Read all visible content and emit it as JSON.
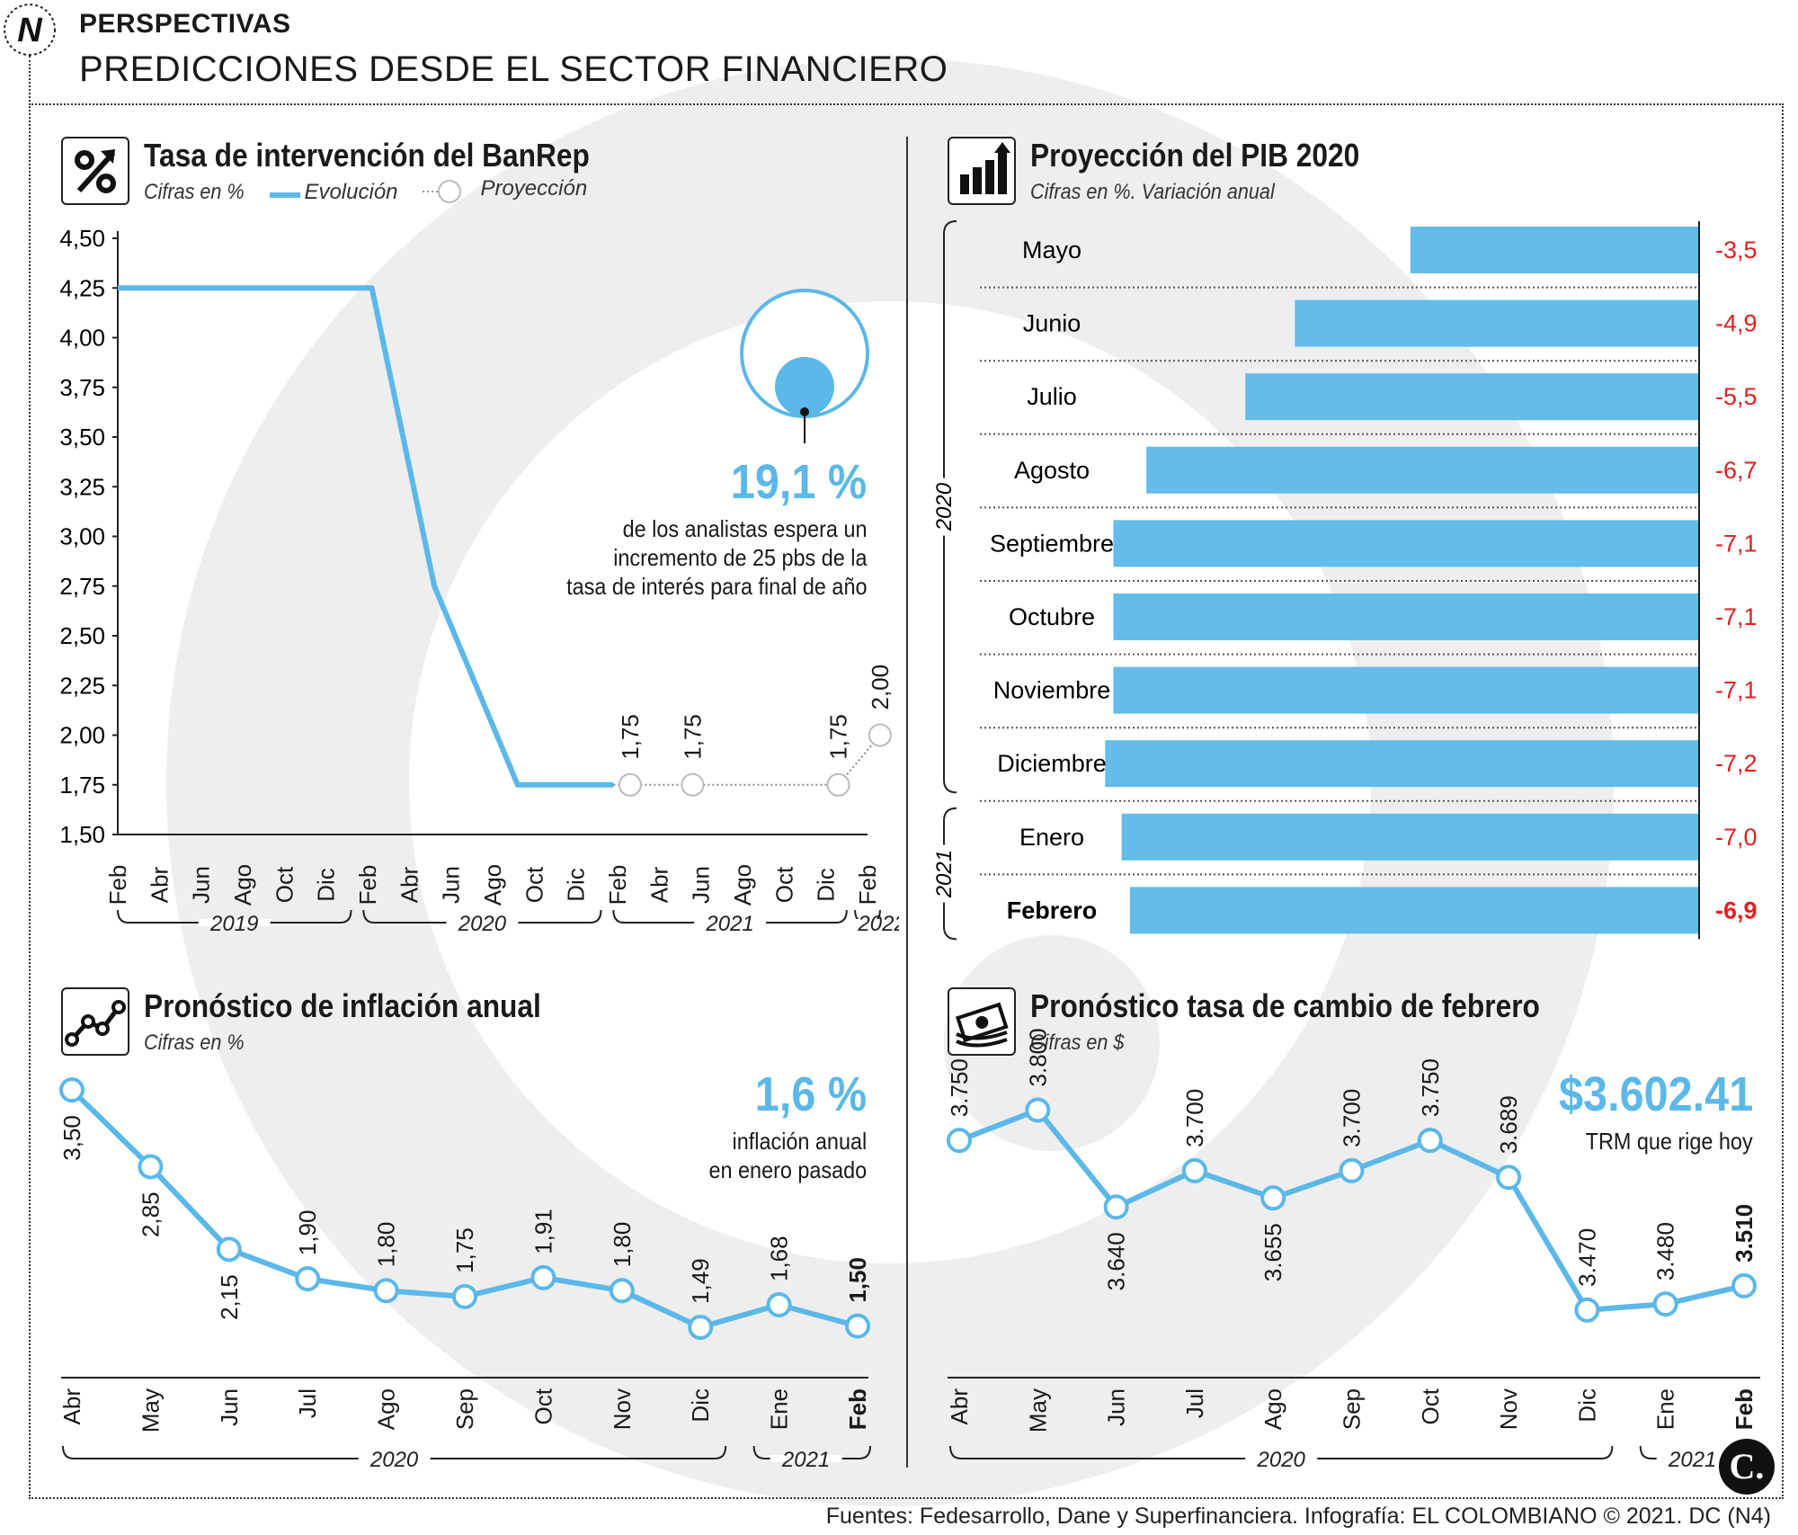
{
  "header": {
    "logo_letter": "N",
    "tag": "PERSPECTIVAS",
    "title": "PREDICCIONES DESDE EL SECTOR FINANCIERO"
  },
  "colors": {
    "accent": "#5bb8e8",
    "negative": "#e02020",
    "text": "#1a1a1a",
    "watermark": "#eeeeee"
  },
  "panel_rate": {
    "icon": "percent-arrow-icon",
    "title": "Tasa de intervención del BanRep",
    "subtitle": "Cifras en %",
    "legend_evolution": "Evolución",
    "legend_projection": "Proyección",
    "callout_value": "19,1 %",
    "callout_lines": [
      "de los analistas espera un",
      "incremento de 25 pbs de la",
      "tasa de interés para final de año"
    ]
  },
  "panel_gdp": {
    "icon": "bar-chart-icon",
    "title": "Proyección del PIB 2020",
    "subtitle": "Cifras en %. Variación anual"
  },
  "panel_inflation": {
    "icon": "line-chart-icon",
    "title": "Pronóstico de inflación anual",
    "subtitle": "Cifras en %",
    "callout_value": "1,6 %",
    "callout_lines": [
      "inflación anual",
      "en enero pasado"
    ]
  },
  "panel_fx": {
    "icon": "money-icon",
    "title": "Pronóstico tasa de cambio de febrero",
    "subtitle": "Cifras en $",
    "callout_value": "$3.602.41",
    "callout_lines": [
      "TRM que rige hoy"
    ]
  },
  "footer": "Fuentes: Fedesarrollo, Dane y Superfinanciera. Infografía: EL COLOMBIANO © 2021. DC (N4)",
  "brand_mark": "C.",
  "chart_data": [
    {
      "type": "line",
      "title": "Tasa de intervención del BanRep",
      "ylabel": "Cifras en %",
      "ylim": [
        1.5,
        4.5
      ],
      "yticks": [
        "4,50",
        "4,25",
        "4,00",
        "3,75",
        "3,50",
        "3,25",
        "3,00",
        "2,75",
        "2,50",
        "2,25",
        "2,00",
        "1,75",
        "1,50"
      ],
      "x_ticks": [
        "Feb",
        "Abr",
        "Jun",
        "Ago",
        "Oct",
        "Dic",
        "Feb",
        "Abr",
        "Jun",
        "Ago",
        "Oct",
        "Dic",
        "Feb",
        "Abr",
        "Jun",
        "Ago",
        "Oct",
        "Dic",
        "Feb"
      ],
      "year_groups": [
        "2019",
        "2020",
        "2021",
        "2022"
      ],
      "series": [
        {
          "name": "Evolución",
          "x": [
            0,
            6.1,
            7.6,
            9.6,
            11.9
          ],
          "values": [
            4.25,
            4.25,
            2.75,
            1.75,
            1.75
          ]
        },
        {
          "name": "Proyección",
          "x": [
            12.3,
            13.8,
            17.3,
            18.3
          ],
          "values": [
            1.75,
            1.75,
            1.75,
            2.0
          ],
          "labels": [
            "1,75",
            "1,75",
            "1,75",
            "2,00"
          ]
        }
      ]
    },
    {
      "type": "bar",
      "title": "Proyección del PIB 2020",
      "categories": [
        "Mayo",
        "Junio",
        "Julio",
        "Agosto",
        "Septiembre",
        "Octubre",
        "Noviembre",
        "Diciembre",
        "Enero",
        "Febrero"
      ],
      "values": [
        -3.5,
        -4.9,
        -5.5,
        -6.7,
        -7.1,
        -7.1,
        -7.1,
        -7.2,
        -7.0,
        -6.9
      ],
      "labels": [
        "-3,5",
        "-4,9",
        "-5,5",
        "-6,7",
        "-7,1",
        "-7,1",
        "-7,1",
        "-7,2",
        "-7,0",
        "-6,9"
      ],
      "year_groups": [
        "2020",
        "2021"
      ],
      "xlim": [
        -8.5,
        0
      ]
    },
    {
      "type": "line",
      "title": "Pronóstico de inflación anual",
      "categories": [
        "Abr",
        "May",
        "Jun",
        "Jul",
        "Ago",
        "Sep",
        "Oct",
        "Nov",
        "Dic",
        "Ene",
        "Feb"
      ],
      "values": [
        3.5,
        2.85,
        2.15,
        1.9,
        1.8,
        1.75,
        1.91,
        1.8,
        1.49,
        1.68,
        1.5
      ],
      "labels": [
        "3,50",
        "2,85",
        "2,15",
        "1,90",
        "1,80",
        "1,75",
        "1,91",
        "1,80",
        "1,49",
        "1,68",
        "1,50"
      ],
      "year_groups": [
        "2020",
        "2021"
      ],
      "ylim": [
        1.2,
        3.6
      ]
    },
    {
      "type": "line",
      "title": "Pronóstico tasa de cambio de febrero",
      "categories": [
        "Abr",
        "May",
        "Jun",
        "Jul",
        "Ago",
        "Sep",
        "Oct",
        "Nov",
        "Dic",
        "Ene",
        "Feb"
      ],
      "values": [
        3750,
        3800,
        3640,
        3700,
        3655,
        3700,
        3750,
        3689,
        3470,
        3480,
        3510
      ],
      "labels": [
        "3.750",
        "3.800",
        "3.640",
        "3.700",
        "3.655",
        "3.700",
        "3.750",
        "3.689",
        "3.470",
        "3.480",
        "3.510"
      ],
      "year_groups": [
        "2020",
        "2021"
      ],
      "ylim": [
        3400,
        3820
      ]
    }
  ]
}
